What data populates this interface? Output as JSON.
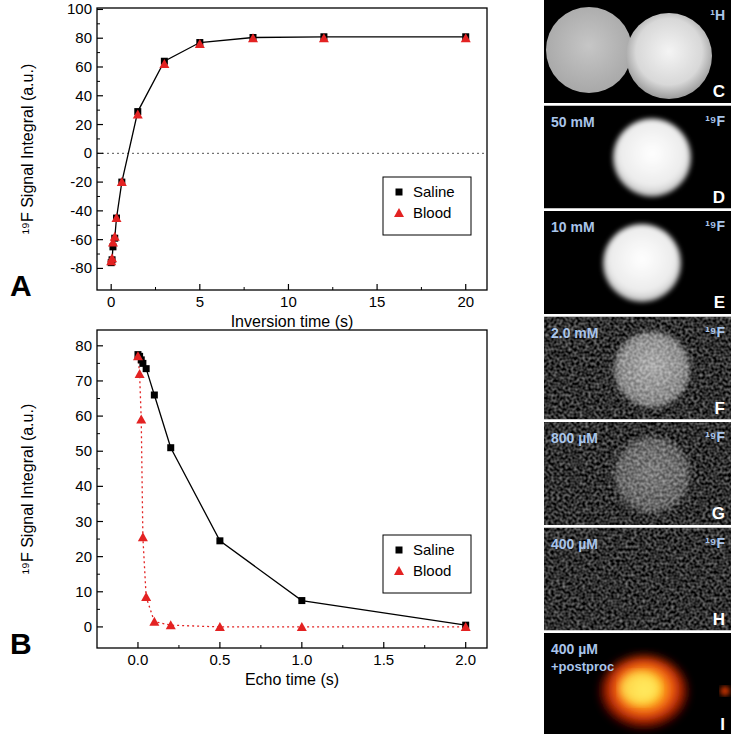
{
  "chart_data": [
    {
      "type": "scatter",
      "panel": "A",
      "x_label": "Inversion time (s)",
      "y_label": "¹⁹F Signal Integral (a.u.)",
      "xlim": [
        -0.8,
        21.2
      ],
      "ylim": [
        -95,
        101
      ],
      "xticks": [
        0,
        5,
        10,
        15,
        20
      ],
      "yticks": [
        -80,
        -60,
        -40,
        -20,
        0,
        20,
        40,
        60,
        80,
        100
      ],
      "hlines": [
        0
      ],
      "legend": "lower right",
      "grid": false,
      "series": [
        {
          "name": "Saline",
          "color": "#000000",
          "marker": "square",
          "line_style": "solid",
          "x": [
            0,
            0.05,
            0.1,
            0.2,
            0.3,
            0.6,
            1.5,
            3,
            5,
            8,
            12,
            20
          ],
          "values": [
            -76,
            -74,
            -65,
            -59,
            -45,
            -20,
            29,
            64,
            77,
            80.5,
            81,
            81
          ]
        },
        {
          "name": "Blood",
          "color": "#e32222",
          "marker": "triangle",
          "line_style": "none",
          "x": [
            0,
            0.05,
            0.1,
            0.2,
            0.3,
            0.6,
            1.5,
            3,
            5,
            8,
            12,
            20
          ],
          "values": [
            -75,
            -73,
            -62,
            -58,
            -45,
            -20,
            27,
            62,
            76,
            80,
            80,
            80
          ]
        }
      ]
    },
    {
      "type": "scatter",
      "panel": "B",
      "x_label": "Echo time (s)",
      "y_label": "¹⁹F Signal Integral (a.u.)",
      "xlim": [
        -0.25,
        2.13
      ],
      "ylim": [
        -6,
        84.5
      ],
      "xticks": [
        {
          "value": 0,
          "label": "0.0"
        },
        0.5,
        {
          "value": 1,
          "label": "1.0"
        },
        1.5,
        {
          "value": 2,
          "label": "2.0"
        }
      ],
      "yticks": [
        0,
        10,
        20,
        30,
        40,
        50,
        60,
        70,
        80
      ],
      "legend": "lower right",
      "grid": false,
      "series": [
        {
          "name": "Saline",
          "color": "#000000",
          "marker": "square",
          "line_style": "solid",
          "x": [
            0,
            0.01,
            0.02,
            0.03,
            0.05,
            0.1,
            0.2,
            0.5,
            1,
            2
          ],
          "values": [
            77.5,
            77,
            76,
            75,
            73.5,
            66,
            51,
            24.5,
            7.5,
            0.5
          ]
        },
        {
          "name": "Blood",
          "color": "#e32222",
          "marker": "triangle",
          "line_style": "dotted",
          "x": [
            0,
            0.01,
            0.02,
            0.03,
            0.05,
            0.1,
            0.2,
            0.5,
            1,
            2
          ],
          "values": [
            77,
            72,
            59,
            25.5,
            8.5,
            1.5,
            0.5,
            0,
            0,
            0
          ]
        }
      ]
    }
  ],
  "images": [
    {
      "panel": "C",
      "nucleus": "¹H"
    },
    {
      "panel": "D",
      "concentration": "50 mM",
      "nucleus": "¹⁹F"
    },
    {
      "panel": "E",
      "concentration": "10 mM",
      "nucleus": "¹⁹F"
    },
    {
      "panel": "F",
      "concentration": "2.0 mM",
      "nucleus": "¹⁹F"
    },
    {
      "panel": "G",
      "concentration": "800 µM",
      "nucleus": "¹⁹F"
    },
    {
      "panel": "H",
      "concentration": "400 µM",
      "nucleus": "¹⁹F"
    },
    {
      "panel": "I",
      "concentration": "400 µM",
      "note": "+postproc"
    }
  ]
}
